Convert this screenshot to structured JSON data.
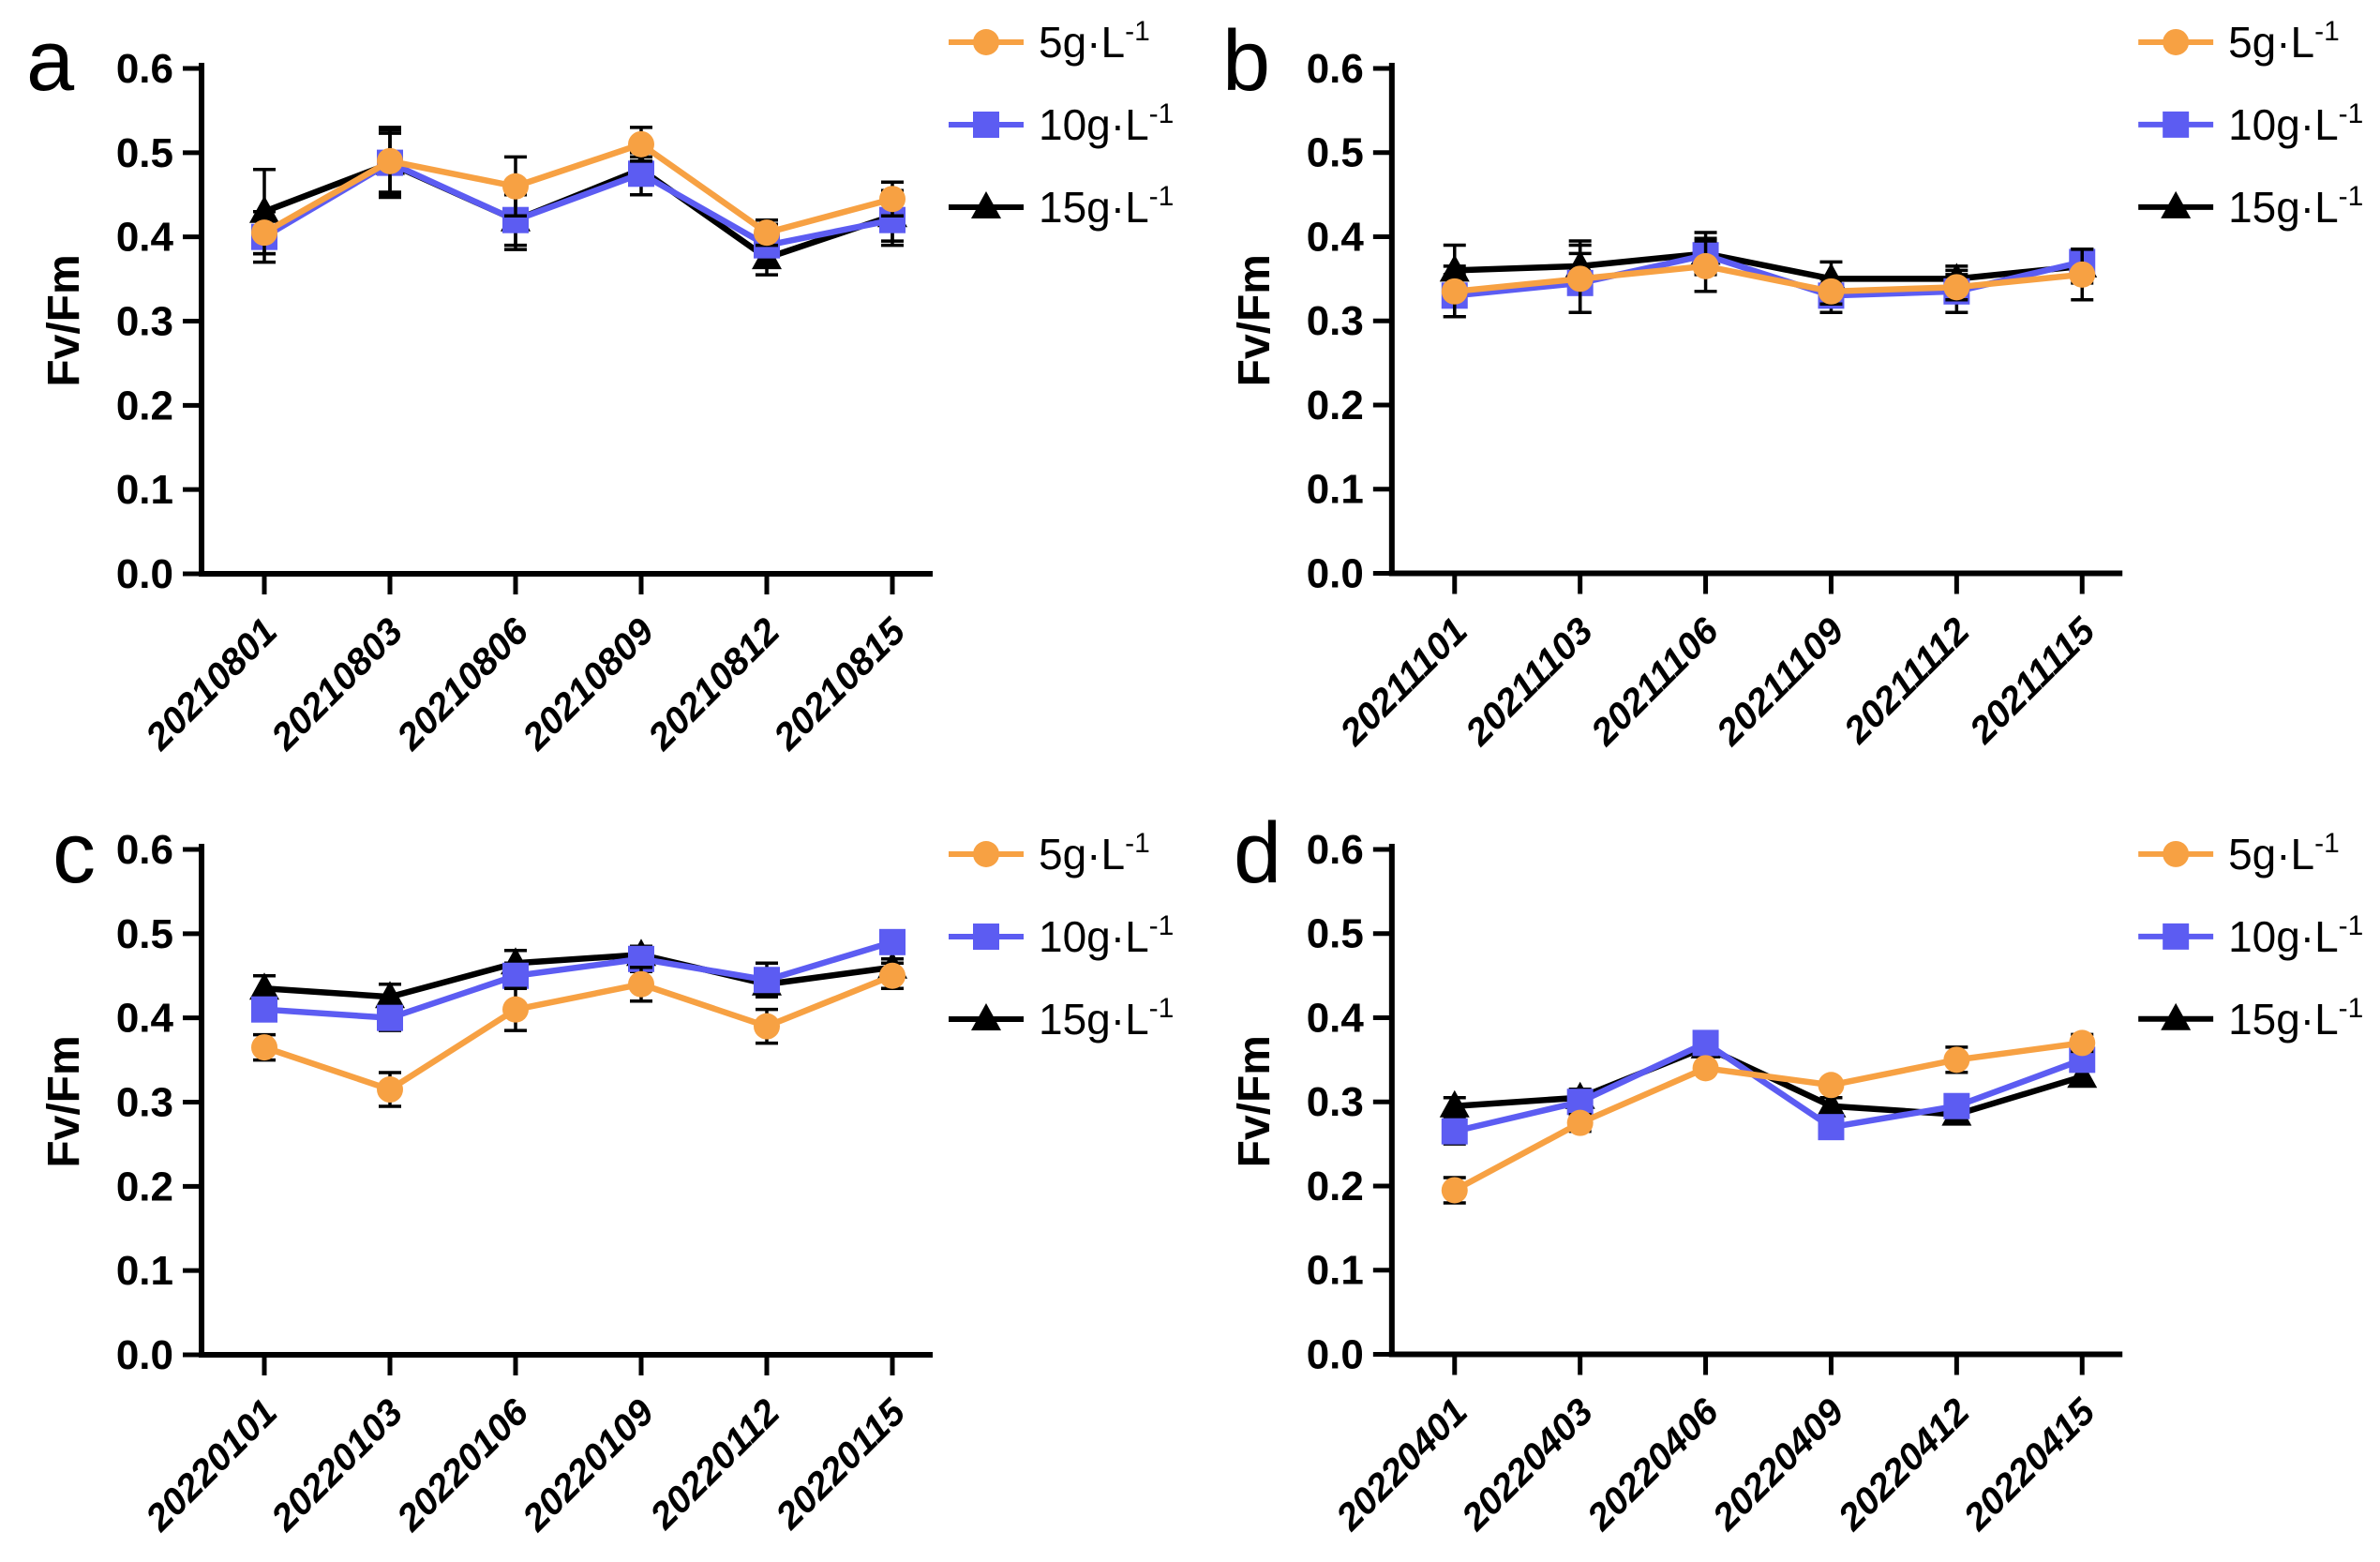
{
  "figure": {
    "background": "#FFFFFF",
    "error_bar_color": "#000000",
    "ylabel": "Fv/Fm",
    "yticks": [
      "0.0",
      "0.1",
      "0.2",
      "0.3",
      "0.4",
      "0.5",
      "0.6"
    ],
    "series_colors": {
      "5g": "#F7A143",
      "10g": "#5C5CF2",
      "15g": "#000000"
    }
  },
  "chart_data": [
    {
      "panel": "a",
      "type": "line",
      "ylabel": "Fv/Fm",
      "ylim": [
        0,
        0.6
      ],
      "ytick_step": 0.1,
      "grid": false,
      "legend_position": "right",
      "categories": [
        "20210801",
        "20210803",
        "20210806",
        "20210809",
        "20210812",
        "20210815"
      ],
      "series": [
        {
          "name": "5g·L⁻¹",
          "label_base": "5g·L",
          "label_sup": "-1",
          "color": "#F7A143",
          "marker": "circle",
          "values": [
            0.405,
            0.49,
            0.46,
            0.51,
            0.405,
            0.445
          ],
          "errors": [
            0.025,
            0.04,
            0.035,
            0.02,
            0.015,
            0.02
          ]
        },
        {
          "name": "10g·L⁻¹",
          "label_base": "10g·L",
          "label_sup": "-1",
          "color": "#5C5CF2",
          "marker": "square",
          "values": [
            0.4,
            0.488,
            0.42,
            0.475,
            0.39,
            0.42
          ],
          "errors": [
            0.03,
            0.035,
            0.03,
            0.025,
            0.025,
            0.03
          ]
        },
        {
          "name": "15g·L⁻¹",
          "label_base": "15g·L",
          "label_sup": "-1",
          "color": "#000000",
          "marker": "triangle",
          "values": [
            0.43,
            0.487,
            0.42,
            0.48,
            0.375,
            0.425
          ],
          "errors": [
            0.05,
            0.04,
            0.035,
            0.015,
            0.02,
            0.03
          ]
        }
      ]
    },
    {
      "panel": "b",
      "type": "line",
      "ylabel": "Fv/Fm",
      "ylim": [
        0,
        0.6
      ],
      "ytick_step": 0.1,
      "grid": false,
      "legend_position": "right",
      "categories": [
        "20211101",
        "20211103",
        "20211106",
        "20211109",
        "20211112",
        "20211115"
      ],
      "series": [
        {
          "name": "5g·L⁻¹",
          "label_base": "5g·L",
          "label_sup": "-1",
          "color": "#F7A143",
          "marker": "circle",
          "values": [
            0.335,
            0.35,
            0.365,
            0.335,
            0.34,
            0.355
          ],
          "errors": [
            0.03,
            0.04,
            0.03,
            0.015,
            0.015,
            0.03
          ]
        },
        {
          "name": "10g·L⁻¹",
          "label_base": "10g·L",
          "label_sup": "-1",
          "color": "#5C5CF2",
          "marker": "square",
          "values": [
            0.33,
            0.345,
            0.378,
            0.33,
            0.335,
            0.37
          ],
          "errors": [
            0.025,
            0.035,
            0.02,
            0.02,
            0.025,
            0.015
          ]
        },
        {
          "name": "15g·L⁻¹",
          "label_base": "15g·L",
          "label_sup": "-1",
          "color": "#000000",
          "marker": "triangle",
          "values": [
            0.36,
            0.365,
            0.38,
            0.35,
            0.35,
            0.365
          ],
          "errors": [
            0.03,
            0.03,
            0.025,
            0.02,
            0.015,
            0.02
          ]
        }
      ]
    },
    {
      "panel": "c",
      "type": "line",
      "ylabel": "Fv/Fm",
      "ylim": [
        0,
        0.6
      ],
      "ytick_step": 0.1,
      "grid": false,
      "legend_position": "right",
      "categories": [
        "20220101",
        "20220103",
        "20220106",
        "20220109",
        "20220112",
        "20220115"
      ],
      "series": [
        {
          "name": "5g·L⁻¹",
          "label_base": "5g·L",
          "label_sup": "-1",
          "color": "#F7A143",
          "marker": "circle",
          "values": [
            0.365,
            0.315,
            0.41,
            0.44,
            0.39,
            0.45
          ],
          "errors": [
            0.015,
            0.02,
            0.025,
            0.02,
            0.02,
            0.015
          ]
        },
        {
          "name": "10g·L⁻¹",
          "label_base": "10g·L",
          "label_sup": "-1",
          "color": "#5C5CF2",
          "marker": "square",
          "values": [
            0.41,
            0.4,
            0.45,
            0.47,
            0.445,
            0.49
          ],
          "errors": [
            0.01,
            0.015,
            0.015,
            0.015,
            0.02,
            0.01
          ]
        },
        {
          "name": "15g·L⁻¹",
          "label_base": "15g·L",
          "label_sup": "-1",
          "color": "#000000",
          "marker": "triangle",
          "values": [
            0.435,
            0.425,
            0.465,
            0.475,
            0.44,
            0.46
          ],
          "errors": [
            0.015,
            0.015,
            0.015,
            0.01,
            0.01,
            0.01
          ]
        }
      ]
    },
    {
      "panel": "d",
      "type": "line",
      "ylabel": "Fv/Fm",
      "ylim": [
        0,
        0.6
      ],
      "ytick_step": 0.1,
      "grid": false,
      "legend_position": "right",
      "categories": [
        "20220401",
        "20220403",
        "20220406",
        "20220409",
        "20220412",
        "20220415"
      ],
      "series": [
        {
          "name": "5g·L⁻¹",
          "label_base": "5g·L",
          "label_sup": "-1",
          "color": "#F7A143",
          "marker": "circle",
          "values": [
            0.195,
            0.275,
            0.34,
            0.32,
            0.35,
            0.37
          ],
          "errors": [
            0.015,
            0.01,
            0.005,
            0.005,
            0.015,
            0.01
          ]
        },
        {
          "name": "10g·L⁻¹",
          "label_base": "10g·L",
          "label_sup": "-1",
          "color": "#5C5CF2",
          "marker": "square",
          "values": [
            0.265,
            0.3,
            0.37,
            0.27,
            0.295,
            0.35
          ],
          "errors": [
            0.015,
            0.01,
            0.005,
            0.01,
            0.01,
            0.01
          ]
        },
        {
          "name": "15g·L⁻¹",
          "label_base": "15g·L",
          "label_sup": "-1",
          "color": "#000000",
          "marker": "triangle",
          "values": [
            0.295,
            0.305,
            0.365,
            0.295,
            0.285,
            0.33
          ],
          "errors": [
            0.01,
            0.01,
            0.005,
            0.01,
            0.005,
            0.01
          ]
        }
      ]
    }
  ]
}
